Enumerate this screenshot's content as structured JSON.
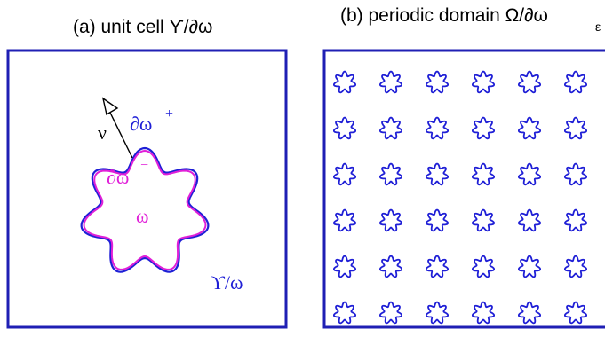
{
  "panel_a": {
    "caption": "(a) unit cell ϒ/∂ω",
    "labels": {
      "outer_boundary": "∂ω",
      "outer_sup": "+",
      "inner_boundary": "∂ω",
      "inner_sup": "−",
      "inclusion": "ω",
      "normal": "ν",
      "matrix": "ϒ/ω"
    }
  },
  "panel_b": {
    "caption_main": "(b) periodic domain Ω/∂ω",
    "caption_sub": "ε",
    "rows": 6,
    "columns": 6
  },
  "colors": {
    "frame_blue": "#1f1fb4",
    "outer_curve_blue": "#1f1fd6",
    "inner_curve_magenta": "#e01fd8",
    "arrow_black": "#000000"
  },
  "icons": {
    "normal_arrow": "outline-triangle-arrowhead",
    "inclusion_shape": "seven-point-star"
  }
}
